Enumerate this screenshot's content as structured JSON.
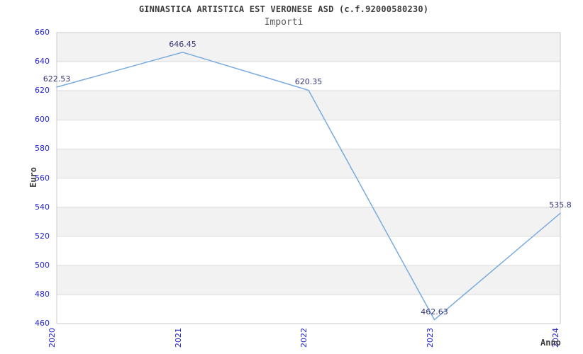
{
  "header": {
    "title": "GINNASTICA ARTISTICA EST VERONESE ASD (c.f.92000580230)",
    "subtitle": "Importi"
  },
  "chart_data": {
    "type": "line",
    "title": "GINNASTICA ARTISTICA EST VERONESE ASD (c.f.92000580230)",
    "subtitle": "Importi",
    "xlabel": "Anno",
    "ylabel": "Euro",
    "x": [
      "2020",
      "2021",
      "2022",
      "2023",
      "2024"
    ],
    "series": [
      {
        "name": "Importi",
        "values": [
          622.53,
          646.45,
          620.35,
          462.63,
          535.8
        ]
      }
    ],
    "point_labels": [
      "622.53",
      "646.45",
      "620.35",
      "462.63",
      "535.8"
    ],
    "ylim": [
      460,
      660
    ],
    "yticks": [
      660,
      640,
      620,
      600,
      580,
      560,
      540,
      520,
      500,
      480,
      460
    ],
    "grid": "horizontal-bands",
    "legend": "none",
    "colors": {
      "line": "#7aaade",
      "tick_label": "#2323d4",
      "point_label": "#333377",
      "band_gray": "#f2f2f2",
      "band_white": "#ffffff",
      "gridline": "#d9d9d9",
      "border": "#c9c9c9",
      "title_text": "#3c3c3c",
      "subtitle_text": "#5a5a5a"
    }
  }
}
